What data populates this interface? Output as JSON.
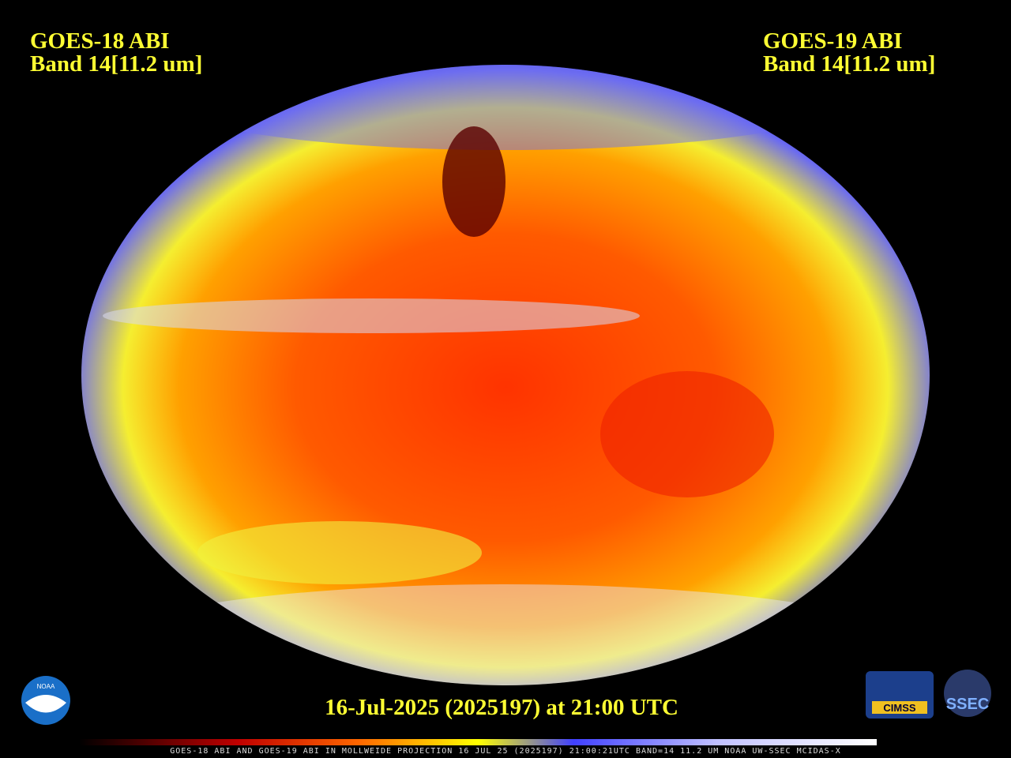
{
  "header": {
    "left": {
      "title": "GOES-18 ABI",
      "band": "Band 14[11.2 um]"
    },
    "right": {
      "title": "GOES-19 ABI",
      "band": "Band 14[11.2 um]"
    }
  },
  "timestamp": "16-Jul-2025 (2025197) at 21:00 UTC",
  "footer": "GOES-18 ABI AND GOES-19 ABI IN MOLLWEIDE PROJECTION 16 JUL 25 (2025197) 21:00:21UTC BAND=14 11.2 UM NOAA UW-SSEC MCIDAS-X",
  "logos": {
    "noaa": "NOAA",
    "cimss": "CIMSS",
    "ssec": "SSEC"
  }
}
